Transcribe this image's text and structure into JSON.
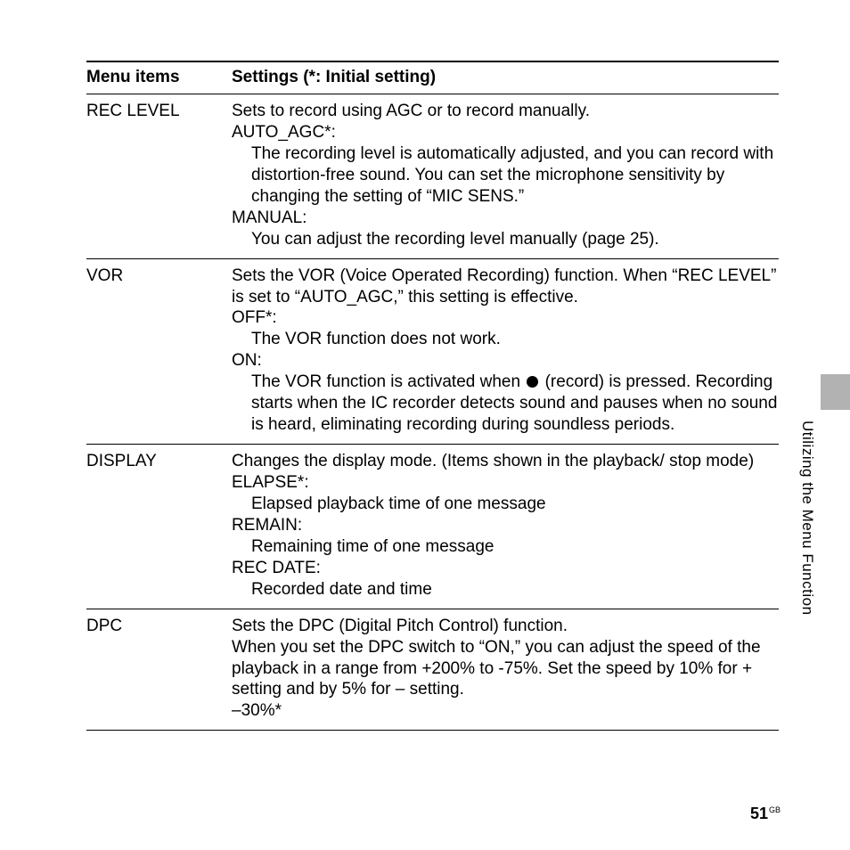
{
  "table": {
    "header": {
      "col1": "Menu items",
      "col2": "Settings (*: Initial setting)"
    },
    "rows": [
      {
        "name": "REC LEVEL",
        "lines": [
          {
            "text": "Sets to record using AGC or to record manually.",
            "indent": false
          },
          {
            "text": "AUTO_AGC*:",
            "indent": false
          },
          {
            "text": "The recording level is automatically adjusted, and you can record with distortion-free sound. You can set the microphone sensitivity by changing the setting of “MIC SENS.”",
            "indent": true
          },
          {
            "text": "MANUAL:",
            "indent": false
          },
          {
            "text": "You can adjust the recording level manually (page 25).",
            "indent": true
          }
        ]
      },
      {
        "name": "VOR",
        "lines": [
          {
            "text": "Sets the VOR (Voice Operated Recording) function. When “REC LEVEL” is set to “AUTO_AGC,” this setting is effective.",
            "indent": false
          },
          {
            "text": "OFF*:",
            "indent": false
          },
          {
            "text": "The VOR function does not work.",
            "indent": true
          },
          {
            "text": "ON:",
            "indent": false
          },
          {
            "text_pre": "The VOR function is activated when ",
            "icon": "record-dot",
            "text_post": " (record) is pressed. Recording starts when the IC recorder detects sound and pauses when no sound is heard, eliminating recording during soundless periods.",
            "indent": true
          }
        ]
      },
      {
        "name": "DISPLAY",
        "lines": [
          {
            "text": "Changes the display mode. (Items shown in the playback/ stop mode)",
            "indent": false
          },
          {
            "text": "ELAPSE*:",
            "indent": false
          },
          {
            "text": "Elapsed playback time of one message",
            "indent": true
          },
          {
            "text": "REMAIN:",
            "indent": false
          },
          {
            "text": "Remaining time of one message",
            "indent": true
          },
          {
            "text": "REC DATE:",
            "indent": false
          },
          {
            "text": "Recorded date and time",
            "indent": true
          }
        ]
      },
      {
        "name": "DPC",
        "lines": [
          {
            "text": "Sets the DPC (Digital Pitch Control) function.",
            "indent": false
          },
          {
            "text": "When you set the DPC switch to “ON,” you can adjust the speed of the playback in a range from +200% to -75%. Set the speed by 10% for + setting and by 5% for – setting.",
            "indent": false
          },
          {
            "text": "–30%*",
            "indent": false
          }
        ]
      }
    ]
  },
  "side": {
    "label": "Utilizing the Menu Function"
  },
  "footer": {
    "page": "51",
    "suffix": "GB"
  },
  "colors": {
    "text": "#000000",
    "background": "#ffffff",
    "tab": "#b2b2b2"
  }
}
